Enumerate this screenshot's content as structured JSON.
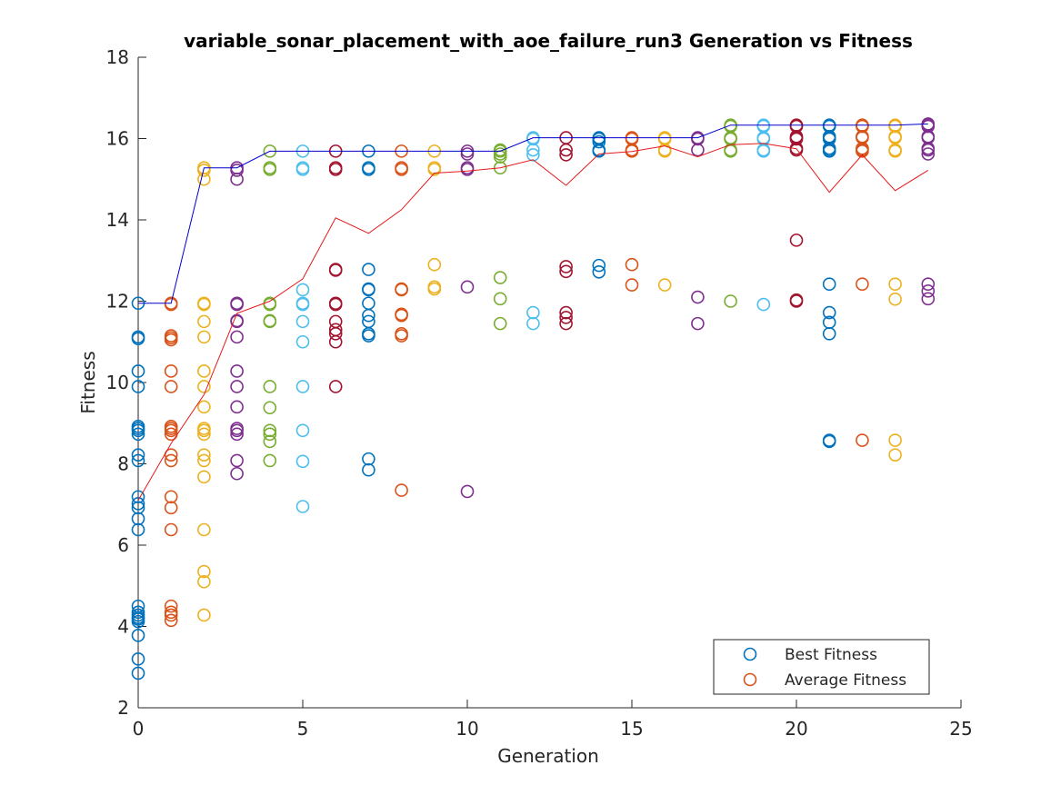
{
  "chart_data": {
    "type": "scatter",
    "title": "variable_sonar_placement_with_aoe_failure_run3 Generation vs Fitness",
    "xlabel": "Generation",
    "ylabel": "Fitness",
    "xlim": [
      0,
      25
    ],
    "ylim": [
      2,
      18
    ],
    "xticks": [
      "0",
      "5",
      "10",
      "15",
      "20",
      "25"
    ],
    "yticks": [
      "2",
      "4",
      "6",
      "8",
      "10",
      "12",
      "14",
      "16",
      "18"
    ],
    "grid": false,
    "legend_position": "bottom-right",
    "legend": [
      "Best Fitness",
      "Average Fitness"
    ],
    "legend_colors": [
      "#0072bd",
      "#d95319"
    ],
    "best_fitness_line": {
      "color": "#0000cc",
      "x": [
        0,
        1,
        2,
        3,
        4,
        5,
        6,
        7,
        8,
        9,
        10,
        11,
        12,
        13,
        14,
        15,
        16,
        17,
        18,
        19,
        20,
        21,
        22,
        23,
        24
      ],
      "y": [
        11.95,
        11.95,
        15.28,
        15.28,
        15.69,
        15.69,
        15.69,
        15.69,
        15.69,
        15.69,
        15.69,
        15.69,
        16.02,
        16.02,
        16.02,
        16.02,
        16.02,
        16.02,
        16.33,
        16.33,
        16.33,
        16.33,
        16.33,
        16.33,
        16.36
      ]
    },
    "average_fitness_line": {
      "color": "#e41a1c",
      "x": [
        0,
        1,
        2,
        3,
        4,
        5,
        6,
        7,
        8,
        9,
        10,
        11,
        12,
        13,
        14,
        15,
        16,
        17,
        18,
        19,
        20,
        21,
        22,
        23,
        24
      ],
      "y": [
        7.1,
        8.5,
        9.7,
        11.7,
        12.0,
        12.55,
        14.05,
        13.67,
        14.25,
        15.15,
        15.2,
        15.28,
        15.48,
        14.85,
        15.62,
        15.68,
        15.82,
        15.55,
        15.85,
        15.88,
        15.75,
        14.68,
        15.6,
        14.72,
        15.22
      ]
    },
    "point_groups": [
      {
        "x": 0,
        "color": "#0072bd",
        "y": [
          11.95,
          11.12,
          11.08,
          10.28,
          9.9,
          8.92,
          8.87,
          8.82,
          8.73,
          8.22,
          8.08,
          7.19,
          7.02,
          6.92,
          6.65,
          6.38,
          4.5,
          4.35,
          4.28,
          4.22,
          4.18,
          4.12,
          3.78,
          3.2,
          2.85
        ]
      },
      {
        "x": 1,
        "color": "#d95319",
        "y": [
          11.95,
          11.92,
          11.15,
          11.1,
          11.05,
          10.28,
          9.9,
          8.92,
          8.87,
          8.82,
          8.73,
          8.22,
          8.08,
          7.19,
          6.92,
          6.38,
          4.5,
          4.35,
          4.28,
          4.15
        ]
      },
      {
        "x": 2,
        "color": "#edb120",
        "y": [
          15.28,
          15.22,
          15.0,
          11.95,
          11.92,
          11.5,
          11.12,
          10.28,
          9.9,
          9.4,
          8.87,
          8.82,
          8.73,
          8.22,
          8.08,
          7.68,
          6.38,
          5.35,
          5.1,
          4.28
        ]
      },
      {
        "x": 3,
        "color": "#7e2f8e",
        "y": [
          15.28,
          15.22,
          15.0,
          11.95,
          11.92,
          11.52,
          11.5,
          11.12,
          10.28,
          9.9,
          9.4,
          8.87,
          8.82,
          8.73,
          8.08,
          7.76
        ]
      },
      {
        "x": 4,
        "color": "#77ac30",
        "y": [
          15.69,
          15.28,
          15.24,
          11.95,
          11.92,
          11.52,
          11.5,
          9.9,
          9.38,
          8.82,
          8.73,
          8.55,
          8.08
        ]
      },
      {
        "x": 5,
        "color": "#4dbeee",
        "y": [
          15.69,
          15.28,
          15.24,
          12.28,
          11.95,
          11.92,
          11.5,
          11.0,
          9.9,
          8.82,
          8.06,
          6.95
        ]
      },
      {
        "x": 6,
        "color": "#a2142f",
        "y": [
          15.69,
          15.28,
          15.24,
          12.78,
          12.76,
          11.95,
          11.92,
          11.5,
          11.3,
          11.2,
          11.0,
          9.9
        ]
      },
      {
        "x": 7,
        "color": "#0072bd",
        "y": [
          15.69,
          15.28,
          15.24,
          12.78,
          12.3,
          12.28,
          11.95,
          11.65,
          11.5,
          11.2,
          11.15,
          8.12,
          7.85
        ]
      },
      {
        "x": 8,
        "color": "#d95319",
        "y": [
          15.69,
          15.28,
          15.24,
          12.3,
          12.28,
          11.68,
          11.65,
          11.2,
          11.15,
          7.35
        ]
      },
      {
        "x": 9,
        "color": "#edb120",
        "y": [
          15.69,
          15.28,
          15.24,
          12.9,
          12.35,
          12.3
        ]
      },
      {
        "x": 10,
        "color": "#7e2f8e",
        "y": [
          15.69,
          15.62,
          15.28,
          15.24,
          12.35,
          7.32
        ]
      },
      {
        "x": 11,
        "color": "#77ac30",
        "y": [
          15.72,
          15.69,
          15.62,
          15.55,
          15.28,
          12.58,
          12.06,
          11.45
        ]
      },
      {
        "x": 12,
        "color": "#4dbeee",
        "y": [
          16.02,
          15.99,
          15.72,
          15.6,
          11.72,
          11.45
        ]
      },
      {
        "x": 13,
        "color": "#a2142f",
        "y": [
          16.02,
          15.72,
          15.6,
          12.85,
          12.73,
          11.72,
          11.6,
          11.45
        ]
      },
      {
        "x": 14,
        "color": "#0072bd",
        "y": [
          16.02,
          15.99,
          15.92,
          15.72,
          15.69,
          12.88,
          12.72
        ]
      },
      {
        "x": 15,
        "color": "#d95319",
        "y": [
          16.02,
          15.99,
          15.72,
          15.69,
          12.9,
          12.4
        ]
      },
      {
        "x": 16,
        "color": "#edb120",
        "y": [
          16.02,
          15.99,
          15.72,
          15.69,
          12.4
        ]
      },
      {
        "x": 17,
        "color": "#7e2f8e",
        "y": [
          16.02,
          15.99,
          15.72,
          12.1,
          11.45
        ]
      },
      {
        "x": 18,
        "color": "#77ac30",
        "y": [
          16.33,
          16.3,
          16.02,
          15.99,
          15.72,
          15.69,
          12.0
        ]
      },
      {
        "x": 19,
        "color": "#4dbeee",
        "y": [
          16.33,
          16.3,
          16.02,
          15.99,
          15.72,
          15.69,
          11.92
        ]
      },
      {
        "x": 20,
        "color": "#a2142f",
        "y": [
          16.33,
          16.3,
          16.05,
          16.02,
          15.99,
          15.76,
          15.72,
          13.5,
          12.03,
          12.0
        ]
      },
      {
        "x": 21,
        "color": "#0072bd",
        "y": [
          16.33,
          16.3,
          16.05,
          16.02,
          15.99,
          15.76,
          15.72,
          15.69,
          12.42,
          11.72,
          11.48,
          11.2,
          8.58,
          8.55
        ]
      },
      {
        "x": 22,
        "color": "#d95319",
        "y": [
          16.33,
          16.3,
          16.05,
          16.02,
          15.76,
          15.72,
          15.69,
          12.42,
          8.58
        ]
      },
      {
        "x": 23,
        "color": "#edb120",
        "y": [
          16.33,
          16.3,
          16.05,
          16.02,
          15.72,
          15.69,
          12.42,
          12.05,
          8.58,
          8.22
        ]
      },
      {
        "x": 24,
        "color": "#7e2f8e",
        "y": [
          16.36,
          16.33,
          16.3,
          16.05,
          16.02,
          15.76,
          15.72,
          15.62,
          12.42,
          12.25,
          12.06
        ]
      }
    ]
  }
}
